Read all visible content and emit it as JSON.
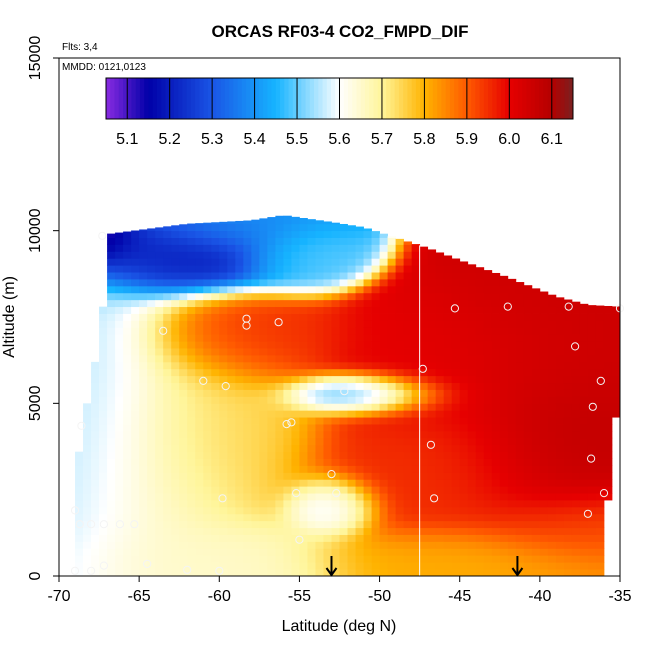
{
  "chart_data": {
    "type": "heatmap",
    "title": "ORCAS RF03-4 CO2_FMPD_DIF",
    "xlabel": "Latitude (deg N)",
    "ylabel": "Altitude (m)",
    "xlim": [
      -70,
      -35
    ],
    "ylim": [
      0,
      15000
    ],
    "x_ticks": [
      -70,
      -65,
      -60,
      -55,
      -50,
      -45,
      -40,
      -35
    ],
    "x_tick_labels": [
      "-70",
      "-65",
      "-60",
      "-55",
      "-50",
      "-45",
      "-40",
      "-35"
    ],
    "y_ticks": [
      0,
      5000,
      10000,
      15000
    ],
    "y_tick_labels": [
      "0",
      "5000",
      "10000",
      "15000"
    ],
    "annotations": {
      "flights": "Flts: 3,4",
      "dates": "MMDD: 0121,0123"
    },
    "colorbar": {
      "range": [
        5.05,
        6.15
      ],
      "ticks": [
        5.1,
        5.2,
        5.3,
        5.4,
        5.5,
        5.6,
        5.7,
        5.8,
        5.9,
        6.0,
        6.1
      ],
      "tick_labels": [
        "5.1",
        "5.2",
        "5.3",
        "5.4",
        "5.5",
        "5.6",
        "5.7",
        "5.8",
        "5.9",
        "6.0",
        "6.1"
      ],
      "colors": [
        "#8a2be2",
        "#0000a8",
        "#1a55e6",
        "#16b4ff",
        "#ffffff",
        "#fff59a",
        "#ffb300",
        "#ff5a00",
        "#e60000",
        "#b50000",
        "#7a2020"
      ],
      "color_stops": [
        5.05,
        5.15,
        5.3,
        5.45,
        5.6,
        5.7,
        5.8,
        5.9,
        6.0,
        6.1,
        6.15
      ]
    },
    "coverage_top": [
      [
        -69,
        9900
      ],
      [
        -67,
        9900
      ],
      [
        -62,
        10200
      ],
      [
        -58,
        10300
      ],
      [
        -56,
        10450
      ],
      [
        -53,
        10250
      ],
      [
        -51,
        10100
      ],
      [
        -49,
        9800
      ],
      [
        -47,
        9500
      ],
      [
        -45,
        9150
      ],
      [
        -42,
        8650
      ],
      [
        -39,
        8100
      ],
      [
        -37,
        7850
      ],
      [
        -35,
        7800
      ]
    ],
    "coverage_left": [
      [
        10000,
        -67.2
      ],
      [
        8000,
        -67.2
      ],
      [
        7000,
        -67.5
      ],
      [
        5500,
        -68
      ],
      [
        4500,
        -68.5
      ],
      [
        3500,
        -68.8
      ],
      [
        2000,
        -69
      ],
      [
        0,
        -69
      ]
    ],
    "coverage_right": [
      [
        7800,
        -35
      ],
      [
        4000,
        -35.3
      ],
      [
        3000,
        -35.5
      ],
      [
        2000,
        -35.8
      ],
      [
        1000,
        -36.2
      ],
      [
        0,
        -36.2
      ]
    ],
    "value_field_centers": [
      {
        "x": -68,
        "y": 9800,
        "value": 5.05,
        "sx": 1.5,
        "sy": 400
      },
      {
        "x": -63,
        "y": 9400,
        "value": 5.2,
        "sx": 4,
        "sy": 600
      },
      {
        "x": -59,
        "y": 10100,
        "value": 5.4,
        "sx": 3,
        "sy": 400
      },
      {
        "x": -55,
        "y": 9300,
        "value": 5.5,
        "sx": 2,
        "sy": 500
      },
      {
        "x": -51,
        "y": 5300,
        "value": 5.4,
        "sx": 2.5,
        "sy": 300
      },
      {
        "x": -53,
        "y": 2000,
        "value": 5.55,
        "sx": 1.5,
        "sy": 450
      },
      {
        "x": -68,
        "y": 4000,
        "value": 5.55,
        "sx": 2.5,
        "sy": 2500
      },
      {
        "x": -64,
        "y": 2500,
        "value": 5.65,
        "sx": 3,
        "sy": 2500
      },
      {
        "x": -60,
        "y": 500,
        "value": 5.65,
        "sx": 4,
        "sy": 600
      },
      {
        "x": -46,
        "y": 6200,
        "value": 6.0,
        "sx": 4,
        "sy": 1000
      },
      {
        "x": -40,
        "y": 6500,
        "value": 6.05,
        "sx": 4,
        "sy": 1500
      },
      {
        "x": -39,
        "y": 3500,
        "value": 6.1,
        "sx": 3,
        "sy": 1200
      },
      {
        "x": -45,
        "y": 3000,
        "value": 5.95,
        "sx": 5,
        "sy": 1200
      },
      {
        "x": -38,
        "y": 1500,
        "value": 5.9,
        "sx": 3,
        "sy": 600
      },
      {
        "x": -45,
        "y": 500,
        "value": 5.8,
        "sx": 5,
        "sy": 500
      },
      {
        "x": -58,
        "y": 6800,
        "value": 5.95,
        "sx": 3,
        "sy": 700
      },
      {
        "x": -60,
        "y": 4000,
        "value": 5.75,
        "sx": 3,
        "sy": 1500
      }
    ],
    "sample_points": [
      {
        "x": -67.3,
        "y": 9850
      },
      {
        "x": -63.5,
        "y": 7100
      },
      {
        "x": -61.0,
        "y": 5650
      },
      {
        "x": -59.6,
        "y": 5500
      },
      {
        "x": -58.3,
        "y": 7450
      },
      {
        "x": -58.3,
        "y": 7250
      },
      {
        "x": -56.3,
        "y": 7350
      },
      {
        "x": -55.8,
        "y": 4400
      },
      {
        "x": -55.5,
        "y": 4450
      },
      {
        "x": -52.2,
        "y": 5350
      },
      {
        "x": -55.2,
        "y": 2400
      },
      {
        "x": -53.0,
        "y": 2950
      },
      {
        "x": -52.7,
        "y": 2400
      },
      {
        "x": -55.0,
        "y": 1050
      },
      {
        "x": -47.3,
        "y": 6000
      },
      {
        "x": -46.8,
        "y": 3800
      },
      {
        "x": -46.6,
        "y": 2250
      },
      {
        "x": -45.3,
        "y": 7750
      },
      {
        "x": -42.0,
        "y": 7800
      },
      {
        "x": -38.2,
        "y": 7800
      },
      {
        "x": -37.8,
        "y": 6650
      },
      {
        "x": -36.2,
        "y": 5650
      },
      {
        "x": -36.7,
        "y": 4900
      },
      {
        "x": -36.8,
        "y": 3400
      },
      {
        "x": -36.0,
        "y": 2400
      },
      {
        "x": -37.0,
        "y": 1800
      },
      {
        "x": -35.0,
        "y": 7750
      },
      {
        "x": -69.0,
        "y": 1900
      },
      {
        "x": -68.7,
        "y": 1500
      },
      {
        "x": -68.0,
        "y": 1500
      },
      {
        "x": -67.2,
        "y": 1500
      },
      {
        "x": -66.2,
        "y": 1500
      },
      {
        "x": -65.3,
        "y": 1500
      },
      {
        "x": -68.6,
        "y": 4350
      },
      {
        "x": -69.0,
        "y": 150
      },
      {
        "x": -68.0,
        "y": 150
      },
      {
        "x": -67.2,
        "y": 300
      },
      {
        "x": -64.5,
        "y": 350
      },
      {
        "x": -62.0,
        "y": 180
      },
      {
        "x": -60.0,
        "y": 150
      },
      {
        "x": -59.8,
        "y": 2250
      }
    ],
    "vertical_line_x": -47.5,
    "flight_markers_x": [
      -53,
      -41.4
    ]
  }
}
